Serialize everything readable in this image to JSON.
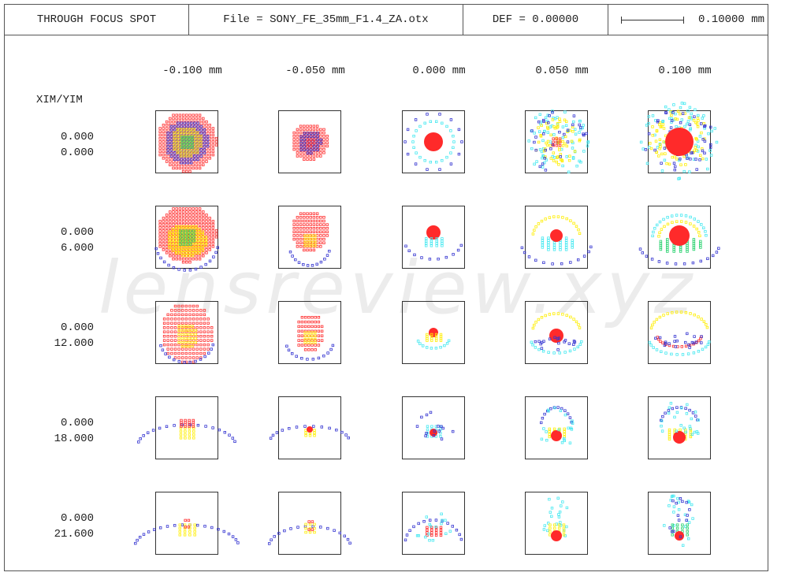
{
  "header": {
    "title": "THROUGH FOCUS SPOT",
    "file": "File = SONY_FE_35mm_F1.4_ZA.otx",
    "def": "DEF = 0.00000",
    "scale_label": "0.10000 mm"
  },
  "axis_label": "XIM/YIM",
  "focus_columns": [
    "-0.100  mm",
    "-0.050  mm",
    "0.000  mm",
    "0.050  mm",
    "0.100  mm"
  ],
  "field_rows": [
    {
      "xim": "0.000",
      "yim": "0.000"
    },
    {
      "xim": "0.000",
      "yim": "6.000"
    },
    {
      "xim": "0.000",
      "yim": "12.000"
    },
    {
      "xim": "0.000",
      "yim": "18.000"
    },
    {
      "xim": "0.000",
      "yim": "21.600"
    }
  ],
  "watermark": "lensreview.xyz",
  "colors": {
    "wavelength_1": "#ff2a2a",
    "wavelength_2": "#ffee00",
    "wavelength_3": "#22d06a",
    "wavelength_4": "#3333d0",
    "wavelength_5": "#44e8f0",
    "wavelength_6": "#c02a6e"
  }
}
